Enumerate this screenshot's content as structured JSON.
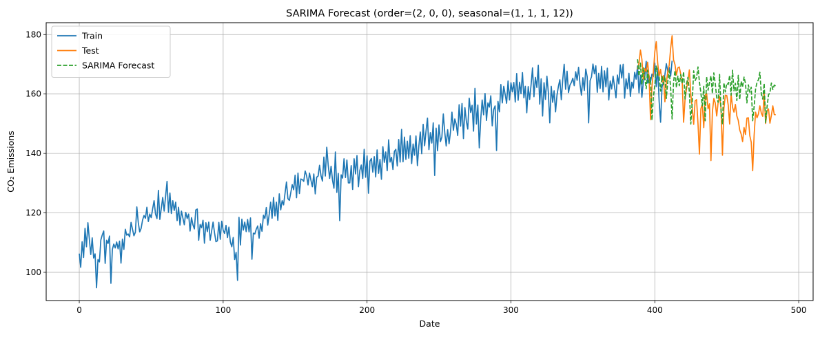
{
  "chart_data": {
    "type": "line",
    "title": "SARIMA Forecast (order=(2, 0, 0), seasonal=(1, 1, 1, 12))",
    "xlabel": "Date",
    "ylabel": "CO₂ Emissions",
    "xlim": [
      -23,
      510
    ],
    "ylim": [
      90.5,
      184
    ],
    "xticks": [
      0,
      100,
      200,
      300,
      400,
      500
    ],
    "yticks": [
      100,
      120,
      140,
      160,
      180
    ],
    "grid": true,
    "legend": "top-left",
    "series": [
      {
        "name": "Train",
        "color": "#1f77b4",
        "style": "solid",
        "x_start": 0,
        "values": [
          106.3,
          101.7,
          110.3,
          105.0,
          114.8,
          108.6,
          116.7,
          111.2,
          106.0,
          111.6,
          104.8,
          106.2,
          94.8,
          104.3,
          103.5,
          110.9,
          112.6,
          113.9,
          103.0,
          110.8,
          109.7,
          112.2,
          96.3,
          107.7,
          109.5,
          108.2,
          110.2,
          107.9,
          110.5,
          103.1,
          111.2,
          107.7,
          114.5,
          112.5,
          112.9,
          111.9,
          116.8,
          114.5,
          112.3,
          113.5,
          122.0,
          116.8,
          113.6,
          114.8,
          117.6,
          119.1,
          118.2,
          121.9,
          117.1,
          119.6,
          118.4,
          121.4,
          124.1,
          119.6,
          118.1,
          127.6,
          117.8,
          121.5,
          125.2,
          120.6,
          125.6,
          130.6,
          120.2,
          126.7,
          119.8,
          124.1,
          120.8,
          123.6,
          117.4,
          121.9,
          115.9,
          120.6,
          118.3,
          116.0,
          120.2,
          118.1,
          119.6,
          113.9,
          118.4,
          116.0,
          114.6,
          121.0,
          121.3,
          110.8,
          116.1,
          115.0,
          117.5,
          109.8,
          116.7,
          113.7,
          116.9,
          110.8,
          113.9,
          116.9,
          113.3,
          110.3,
          110.6,
          116.8,
          111.1,
          117.2,
          114.2,
          113.1,
          115.8,
          111.7,
          115.2,
          110.2,
          108.6,
          111.7,
          104.3,
          106.7,
          97.3,
          118.5,
          109.2,
          117.9,
          114.2,
          116.9,
          113.7,
          117.8,
          113.6,
          118.3,
          104.4,
          113.2,
          112.9,
          114.5,
          115.6,
          111.5,
          116.4,
          113.8,
          119.2,
          118.1,
          121.8,
          115.9,
          119.5,
          123.6,
          118.2,
          125.2,
          119.0,
          123.6,
          117.5,
          126.4,
          121.0,
          124.1,
          122.7,
          126.6,
          130.4,
          124.8,
          124.2,
          126.8,
          129.5,
          127.8,
          132.7,
          125.1,
          133.4,
          126.5,
          131.4,
          131.2,
          130.6,
          134.1,
          132.5,
          129.4,
          133.4,
          131.0,
          128.8,
          133.1,
          126.4,
          132.0,
          132.4,
          136.0,
          132.5,
          130.7,
          138.8,
          132.4,
          142.1,
          136.1,
          131.6,
          135.7,
          131.0,
          128.3,
          140.5,
          126.9,
          133.3,
          117.4,
          132.8,
          131.7,
          138.2,
          131.9,
          137.8,
          130.1,
          130.1,
          135.9,
          127.9,
          138.2,
          133.1,
          139.3,
          128.8,
          134.3,
          136.1,
          131.6,
          141.4,
          132.0,
          139.2,
          126.6,
          137.4,
          138.3,
          133.7,
          138.9,
          132.1,
          141.2,
          133.3,
          138.0,
          131.3,
          142.3,
          137.0,
          140.5,
          134.2,
          144.6,
          137.1,
          138.7,
          134.6,
          140.7,
          141.4,
          135.8,
          144.7,
          137.1,
          148.1,
          137.2,
          145.5,
          138.0,
          144.1,
          138.4,
          146.0,
          136.6,
          143.2,
          139.4,
          145.9,
          135.9,
          142.5,
          147.2,
          139.9,
          149.8,
          142.6,
          147.6,
          151.9,
          141.3,
          147.0,
          143.5,
          150.3,
          132.6,
          148.5,
          140.9,
          149.6,
          144.0,
          145.5,
          153.3,
          147.1,
          142.5,
          148.0,
          143.3,
          147.3,
          153.9,
          147.8,
          151.6,
          149.8,
          146.0,
          156.4,
          149.2,
          156.8,
          145.0,
          155.4,
          150.9,
          148.2,
          158.6,
          153.8,
          156.2,
          147.5,
          161.9,
          149.9,
          156.3,
          141.9,
          151.4,
          158.0,
          153.0,
          160.2,
          151.1,
          157.0,
          155.6,
          159.4,
          149.3,
          154.8,
          156.0,
          141.0,
          157.5,
          154.0,
          163.2,
          157.0,
          162.6,
          159.8,
          156.9,
          164.4,
          158.0,
          163.8,
          160.7,
          163.9,
          157.3,
          166.9,
          157.9,
          164.0,
          160.1,
          167.2,
          158.7,
          162.6,
          153.7,
          162.5,
          158.2,
          163.1,
          168.8,
          159.1,
          165.6,
          162.2,
          169.7,
          156.6,
          165.1,
          152.6,
          163.8,
          158.2,
          166.0,
          160.5,
          150.3,
          162.6,
          157.2,
          161.1,
          154.0,
          159.6,
          162.6,
          164.8,
          158.1,
          164.8,
          170.0,
          161.6,
          167.7,
          160.5,
          163.0,
          163.9,
          165.3,
          162.8,
          167.5,
          164.6,
          169.0,
          163.3,
          159.6,
          165.5,
          161.2,
          168.4,
          165.8,
          150.3,
          164.5,
          165.8,
          170.1,
          166.8,
          169.5,
          160.6,
          167.0,
          161.9,
          169.3,
          160.7,
          167.8,
          162.4,
          168.7,
          158.0,
          164.4,
          161.7,
          166.0,
          162.5,
          158.7,
          166.4,
          163.4,
          169.8,
          165.4,
          170.0,
          158.6,
          165.1,
          161.8,
          167.0,
          159.2,
          164.0,
          162.0,
          167.3,
          165.0,
          169.4,
          160.4,
          166.3,
          158.9,
          164.1,
          165.7,
          171.0,
          163.7,
          166.2,
          164.0,
          166.7,
          165.9,
          170.4,
          162.5,
          168.7,
          157.5,
          150.5,
          162.4,
          164.0,
          166.5,
          170.2,
          167.6,
          169.0,
          166.0,
          171.2
        ]
      },
      {
        "name": "Test",
        "color": "#ff7f0e",
        "style": "solid",
        "x_start": 388,
        "values": [
          168.3,
          170.4,
          174.8,
          171.7,
          165.0,
          168.6,
          167.5,
          170.7,
          165.7,
          151.4,
          162.4,
          167.5,
          174.2,
          177.6,
          170.4,
          166.0,
          168.3,
          164.0,
          166.2,
          157.4,
          163.8,
          167.6,
          169.7,
          175.4,
          179.6,
          171.5,
          169.9,
          166.4,
          168.8,
          169.1,
          166.6,
          164.8,
          150.5,
          158.2,
          161.6,
          164.5,
          168.1,
          159.9,
          155.4,
          149.8,
          157.7,
          158.1,
          150.0,
          139.8,
          155.0,
          156.6,
          148.7,
          159.6,
          160.2,
          155.0,
          156.7,
          137.6,
          154.0,
          158.5,
          157.0,
          152.6,
          157.2,
          159.2,
          155.2,
          139.4,
          155.1,
          159.6,
          159.5,
          156.3,
          149.9,
          160.1,
          155.6,
          153.9,
          156.5,
          152.6,
          151.1,
          147.9,
          146.5,
          144.0,
          148.7,
          146.4,
          151.9,
          152.0,
          146.0,
          143.8,
          134.2,
          146.0,
          153.9,
          152.0,
          153.3,
          156.0,
          153.6,
          152.5,
          160.3,
          150.1,
          154.4,
          155.0,
          150.2,
          152.8,
          156.0,
          153.1,
          153.0
        ]
      },
      {
        "name": "SARIMA Forecast",
        "color": "#2ca02c",
        "style": "dashed",
        "x_start": 388,
        "values": [
          171.7,
          166.1,
          170.4,
          163.2,
          168.8,
          165.7,
          161.8,
          168.0,
          163.7,
          165.5,
          151.2,
          159.1,
          163.0,
          169.4,
          166.1,
          165.7,
          161.0,
          166.0,
          163.3,
          165.9,
          158.5,
          164.1,
          167.8,
          162.0,
          151.6,
          163.9,
          167.9,
          162.2,
          166.0,
          162.8,
          166.5,
          163.5,
          167.5,
          158.3,
          163.4,
          165.6,
          160.6,
          149.9,
          157.3,
          167.8,
          164.5,
          165.5,
          169.1,
          164.0,
          160.4,
          156.0,
          162.6,
          151.0,
          165.8,
          161.3,
          163.8,
          166.1,
          160.2,
          167.1,
          163.5,
          158.8,
          157.2,
          166.6,
          154.5,
          149.8,
          163.8,
          160.7,
          163.6,
          163.2,
          166.3,
          159.6,
          168.0,
          161.1,
          163.6,
          157.8,
          166.3,
          158.1,
          164.3,
          162.4,
          165.7,
          163.6,
          157.0,
          163.1,
          160.6,
          162.3,
          151.0,
          155.7,
          161.6,
          163.9,
          164.8,
          167.3,
          160.1,
          158.3,
          163.6,
          150.4,
          155.7,
          159.7,
          160.5,
          163.7,
          161.5,
          163.0,
          162.7
        ]
      }
    ]
  }
}
